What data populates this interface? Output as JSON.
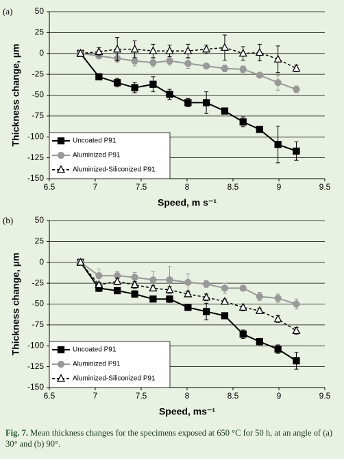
{
  "chart_data": [
    {
      "type": "line",
      "panel_label": "(a)",
      "xlabel": "Speed, m s⁻¹",
      "ylabel": "Thickness change, µm",
      "x": [
        6.84,
        7.04,
        7.24,
        7.43,
        7.63,
        7.81,
        8.01,
        8.21,
        8.41,
        8.61,
        8.79,
        8.99,
        9.19
      ],
      "series": [
        {
          "name": "Uncoated P91",
          "color": "#000000",
          "marker": "square",
          "dashed": false,
          "values": [
            0,
            -28,
            -35,
            -41,
            -37,
            -49,
            -59,
            -59,
            -69,
            -82,
            -91,
            -109,
            -117
          ],
          "errors": [
            0,
            3,
            5,
            6,
            9,
            6,
            5,
            13,
            3,
            6,
            3,
            22,
            11
          ]
        },
        {
          "name": "Aluminized P91",
          "color": "#999999",
          "marker": "circle",
          "dashed": false,
          "values": [
            0,
            -3,
            -6,
            -9,
            -11,
            -9,
            -12,
            -15,
            -18,
            -19,
            -26,
            -35,
            -43
          ],
          "errors": [
            0,
            3,
            5,
            6,
            5,
            5,
            6,
            3,
            4,
            4,
            3,
            9,
            4
          ]
        },
        {
          "name": "Aluminized-Siliconized P91",
          "color": "#000000",
          "marker": "triangle",
          "dashed": true,
          "values": [
            0,
            2,
            5,
            5,
            3,
            3,
            3,
            5,
            7,
            0,
            1,
            -7,
            -18
          ],
          "errors": [
            0,
            5,
            14,
            10,
            8,
            7,
            8,
            5,
            15,
            8,
            10,
            16,
            4
          ]
        }
      ],
      "xlim": [
        6.5,
        9.5
      ],
      "xticks": [
        6.5,
        7,
        7.5,
        8,
        8.5,
        9,
        9.5
      ],
      "ylim": [
        -150,
        50
      ],
      "yticks": [
        50,
        25,
        0,
        -25,
        -50,
        -75,
        -100,
        -125,
        -150
      ],
      "grid": true,
      "legend": "lower-left"
    },
    {
      "type": "line",
      "panel_label": "(b)",
      "xlabel": "Speed, ms⁻¹",
      "ylabel": "Thickness change, µm",
      "x": [
        6.84,
        7.04,
        7.24,
        7.43,
        7.63,
        7.81,
        8.01,
        8.21,
        8.41,
        8.61,
        8.79,
        8.99,
        9.19
      ],
      "series": [
        {
          "name": "Uncoated P91",
          "color": "#000000",
          "marker": "square",
          "dashed": false,
          "values": [
            0,
            -31,
            -34,
            -38,
            -44,
            -44,
            -54,
            -59,
            -64,
            -86,
            -95,
            -104,
            -118
          ],
          "errors": [
            0,
            4,
            3,
            4,
            3,
            4,
            3,
            10,
            2,
            5,
            4,
            5,
            10
          ]
        },
        {
          "name": "Aluminized P91",
          "color": "#999999",
          "marker": "circle",
          "dashed": false,
          "values": [
            0,
            -16,
            -16,
            -18,
            -21,
            -21,
            -24,
            -26,
            -31,
            -31,
            -41,
            -43,
            -50
          ],
          "errors": [
            0,
            8,
            5,
            6,
            10,
            16,
            10,
            4,
            6,
            3,
            5,
            5,
            6
          ]
        },
        {
          "name": "Aluminized-Siliconized P91",
          "color": "#000000",
          "marker": "triangle",
          "dashed": true,
          "values": [
            0,
            -27,
            -23,
            -27,
            -31,
            -33,
            -38,
            -42,
            -47,
            -54,
            -58,
            -68,
            -82
          ],
          "errors": [
            0,
            3,
            4,
            4,
            3,
            4,
            3,
            4,
            3,
            4,
            3,
            4,
            4
          ]
        }
      ],
      "xlim": [
        6.5,
        9.5
      ],
      "xticks": [
        6.5,
        7,
        7.5,
        8,
        8.5,
        9,
        9.5
      ],
      "ylim": [
        -150,
        50
      ],
      "yticks": [
        50,
        25,
        0,
        -25,
        -50,
        -75,
        -100,
        -125,
        -150
      ],
      "grid": true,
      "legend": "lower-left"
    }
  ],
  "caption": {
    "label": "Fig. 7.",
    "text": "Mean thickness changes for the specimens exposed at 650 °C for 50 h, at an angle of (a) 30° and (b) 90°."
  }
}
